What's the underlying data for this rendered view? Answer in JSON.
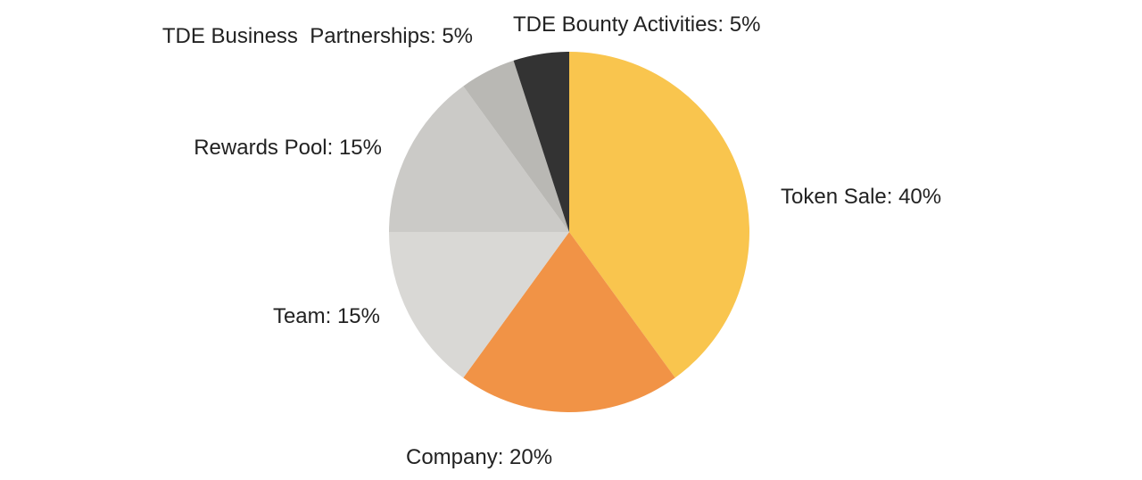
{
  "chart_data": {
    "type": "pie",
    "slices": [
      {
        "label": "Token Sale: 40%",
        "value": 40,
        "color": "#F9C54E"
      },
      {
        "label": "Company: 20%",
        "value": 20,
        "color": "#F19346"
      },
      {
        "label": "Team: 15%",
        "value": 15,
        "color": "#D9D8D5"
      },
      {
        "label": "Rewards Pool: 15%",
        "value": 15,
        "color": "#CBCAC7"
      },
      {
        "label": "TDE Business  Partnerships: 5%",
        "value": 5,
        "color": "#B9B8B4"
      },
      {
        "label": "TDE Bounty Activities: 5%",
        "value": 5,
        "color": "#333333"
      }
    ],
    "start_angle": "12 o'clock",
    "direction": "clockwise",
    "legend": "none"
  }
}
